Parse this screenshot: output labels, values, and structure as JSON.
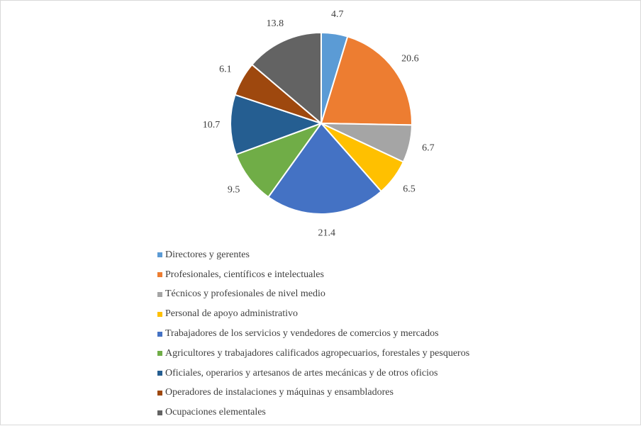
{
  "chart_data": {
    "type": "pie",
    "categories": [
      "Directores y gerentes",
      "Profesionales, científicos e intelectuales",
      "Técnicos y profesionales de nivel medio",
      "Personal de apoyo administrativo",
      "Trabajadores de los servicios y vendedores de comercios y mercados",
      "Agricultores y trabajadores calificados agropecuarios, forestales y pesqueros",
      "Oficiales, operarios y artesanos de artes mecánicas y de otros oficios",
      "Operadores de instalaciones y máquinas y ensambladores",
      "Ocupaciones elementales"
    ],
    "values": [
      4.7,
      20.6,
      6.7,
      6.5,
      21.4,
      9.5,
      10.7,
      6.1,
      13.8
    ],
    "value_labels": [
      "4.7",
      "20.6",
      "6.7",
      "6.5",
      "21.4",
      "9.5",
      "10.7",
      "6.1",
      "13.8"
    ],
    "colors": [
      "#5b9bd5",
      "#ed7d31",
      "#a5a5a5",
      "#ffc000",
      "#4472c4",
      "#70ad47",
      "#255e91",
      "#9e480e",
      "#636363"
    ],
    "title": "",
    "legend_position": "bottom",
    "start_angle": "12 o'clock, clockwise"
  }
}
